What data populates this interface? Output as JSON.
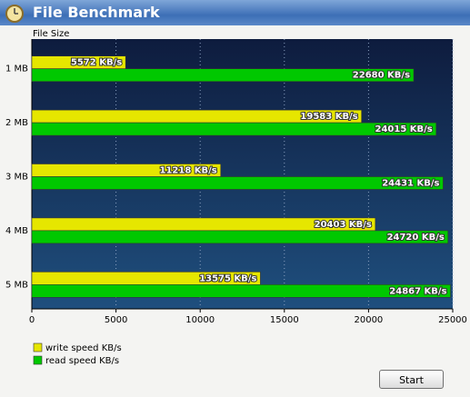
{
  "window": {
    "title": "File Benchmark"
  },
  "button": {
    "label": "Start"
  },
  "chart_data": {
    "type": "bar",
    "orientation": "horizontal",
    "y_label": "File Size",
    "categories": [
      "1 MB",
      "2 MB",
      "3 MB",
      "4 MB",
      "5 MB"
    ],
    "series": [
      {
        "name": "write speed KB/s",
        "color": "#e6e600",
        "values": [
          5572,
          19583,
          11218,
          20403,
          13575
        ],
        "value_labels": [
          "5572 KB/s",
          "19583 KB/s",
          "11218 KB/s",
          "20403 KB/s",
          "13575 KB/s"
        ]
      },
      {
        "name": "read speed KB/s",
        "color": "#00c800",
        "values": [
          22680,
          24015,
          24431,
          24720,
          24867
        ],
        "value_labels": [
          "22680 KB/s",
          "24015 KB/s",
          "24431 KB/s",
          "24720 KB/s",
          "24867 KB/s"
        ]
      }
    ],
    "xlim": [
      0,
      25000
    ],
    "xticks": [
      0,
      5000,
      10000,
      15000,
      20000,
      25000
    ],
    "grid": true
  }
}
